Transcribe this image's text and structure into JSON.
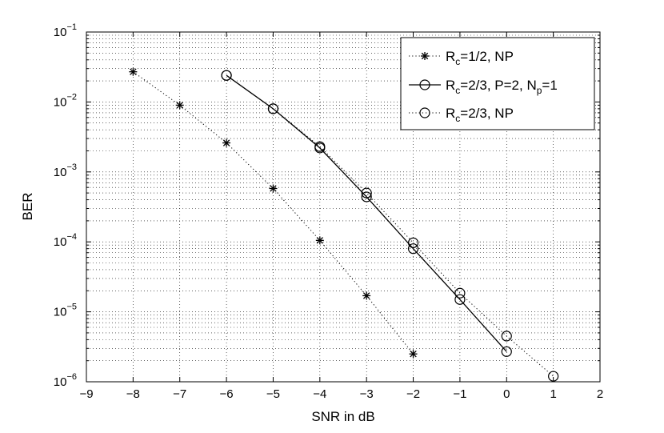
{
  "chart_data": {
    "type": "line",
    "title": "",
    "xlabel": "SNR in dB",
    "ylabel": "BER",
    "xlim": [
      -9,
      2
    ],
    "ylim": [
      1e-06,
      0.1
    ],
    "yscale": "log",
    "grid": true,
    "legend_position": "top-right",
    "x_ticks": [
      -9,
      -8,
      -7,
      -6,
      -5,
      -4,
      -3,
      -2,
      -1,
      0,
      1,
      2
    ],
    "x_tick_labels": [
      "−9",
      "−8",
      "−7",
      "−6",
      "−5",
      "−4",
      "−3",
      "−2",
      "−1",
      "0",
      "1",
      "2"
    ],
    "y_ticks": [
      {
        "value": 1e-06,
        "base": "10",
        "exp": "−6"
      },
      {
        "value": 1e-05,
        "base": "10",
        "exp": "−5"
      },
      {
        "value": 0.0001,
        "base": "10",
        "exp": "−4"
      },
      {
        "value": 0.001,
        "base": "10",
        "exp": "−3"
      },
      {
        "value": 0.01,
        "base": "10",
        "exp": "−2"
      },
      {
        "value": 0.1,
        "base": "10",
        "exp": "−1"
      }
    ],
    "series": [
      {
        "legend": [
          {
            "t": "R"
          },
          {
            "t": "c",
            "sub": true
          },
          {
            "t": "=1/2, NP"
          }
        ],
        "marker": "asterisk",
        "line": "dotted",
        "x": [
          -8,
          -7,
          -6,
          -5,
          -4,
          -3,
          -2
        ],
        "y": [
          0.027,
          0.009,
          0.0026,
          0.00058,
          0.000105,
          1.7e-05,
          2.5e-06
        ]
      },
      {
        "legend": [
          {
            "t": "R"
          },
          {
            "t": "c",
            "sub": true
          },
          {
            "t": "=2/3, P=2, N"
          },
          {
            "t": "p",
            "sub": true
          },
          {
            "t": "=1"
          }
        ],
        "marker": "circle",
        "line": "solid",
        "x": [
          -6,
          -5,
          -4,
          -3,
          -2,
          -1,
          0
        ],
        "y": [
          0.024,
          0.008,
          0.0022,
          0.00044,
          8e-05,
          1.5e-05,
          2.7e-06
        ]
      },
      {
        "legend": [
          {
            "t": "R"
          },
          {
            "t": "c",
            "sub": true
          },
          {
            "t": "=2/3, NP"
          }
        ],
        "marker": "circle",
        "line": "dotted",
        "x": [
          -6,
          -5,
          -4,
          -3,
          -2,
          -1,
          0,
          1
        ],
        "y": [
          0.024,
          0.008,
          0.0023,
          0.0005,
          9.7e-05,
          1.85e-05,
          4.5e-06,
          1.2e-06
        ]
      }
    ]
  }
}
